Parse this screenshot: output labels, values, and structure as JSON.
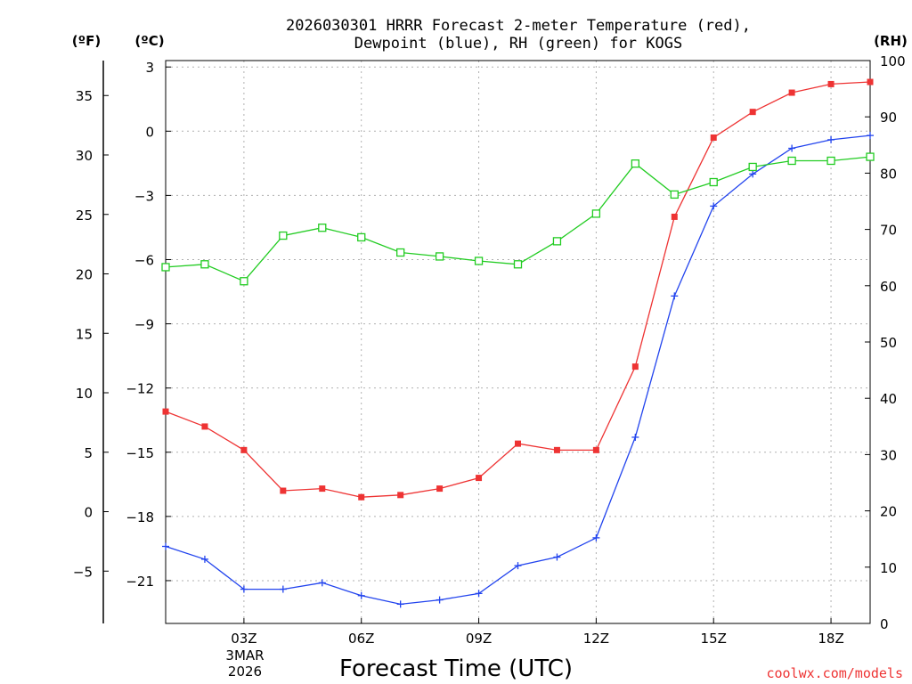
{
  "chart_data": {
    "type": "line",
    "title_line1": "2026030301 HRRR Forecast 2-meter Temperature (red),",
    "title_line2": "Dewpoint (blue), RH (green) for KOGS",
    "xlabel": "Forecast Time (UTC)",
    "credit": "coolwx.com/models",
    "date_label_line1": "3MAR",
    "date_label_line2": "2026",
    "axis_units": {
      "fahrenheit": "(ºF)",
      "celsius": "(ºC)",
      "rh": "(RH)"
    },
    "hours": [
      1,
      2,
      3,
      4,
      5,
      6,
      7,
      8,
      9,
      10,
      11,
      12,
      13,
      14,
      15,
      16,
      17,
      18,
      19
    ],
    "x_ticks": [
      {
        "hour": 3,
        "label": "03Z"
      },
      {
        "hour": 6,
        "label": "06Z"
      },
      {
        "hour": 9,
        "label": "09Z"
      },
      {
        "hour": 12,
        "label": "12Z"
      },
      {
        "hour": 15,
        "label": "15Z"
      },
      {
        "hour": 18,
        "label": "18Z"
      }
    ],
    "xlim": [
      1,
      19
    ],
    "celsius_ticks": [
      "3",
      "0",
      "−3",
      "−6",
      "−9",
      "−12",
      "−15",
      "−18",
      "−21"
    ],
    "celsius_tick_values": [
      3,
      0,
      -3,
      -6,
      -9,
      -12,
      -15,
      -18,
      -21
    ],
    "ylim_celsius": [
      -23,
      3.3
    ],
    "fahrenheit_ticks": [
      "35",
      "30",
      "25",
      "20",
      "15",
      "10",
      "5",
      "0",
      "−5"
    ],
    "fahrenheit_tick_values": [
      35,
      30,
      25,
      20,
      15,
      10,
      5,
      0,
      -5
    ],
    "rh_ticks": [
      "100",
      "90",
      "80",
      "70",
      "60",
      "50",
      "40",
      "30",
      "20",
      "10",
      "0"
    ],
    "rh_tick_values": [
      100,
      90,
      80,
      70,
      60,
      50,
      40,
      30,
      20,
      10,
      0
    ],
    "ylim_rh": [
      0,
      100
    ],
    "series": [
      {
        "name": "2-meter Temperature",
        "axis": "celsius",
        "color": "#ee3333",
        "marker": "filled-square",
        "values": [
          -13.1,
          -13.8,
          -14.9,
          -16.8,
          -16.7,
          -17.1,
          -17.0,
          -16.7,
          -16.2,
          -14.6,
          -14.9,
          -14.9,
          -11.0,
          -4.0,
          -0.3,
          0.9,
          1.8,
          2.2,
          2.3
        ]
      },
      {
        "name": "Dewpoint",
        "axis": "celsius",
        "color": "#2244ee",
        "marker": "plus",
        "values": [
          -19.4,
          -20.0,
          -21.4,
          -21.4,
          -21.1,
          -21.7,
          -22.1,
          -21.9,
          -21.6,
          -20.3,
          -19.9,
          -19.0,
          -14.3,
          -7.7,
          -3.5,
          -2.0,
          -0.8,
          -0.4,
          -0.2
        ]
      },
      {
        "name": "Relative Humidity",
        "axis": "rh",
        "color": "#22cc22",
        "marker": "open-square",
        "values": [
          63.3,
          63.8,
          60.8,
          68.9,
          70.3,
          68.6,
          65.9,
          65.2,
          64.4,
          63.8,
          67.9,
          72.8,
          81.7,
          76.2,
          78.4,
          81.1,
          82.2,
          82.2,
          82.9
        ]
      }
    ]
  }
}
